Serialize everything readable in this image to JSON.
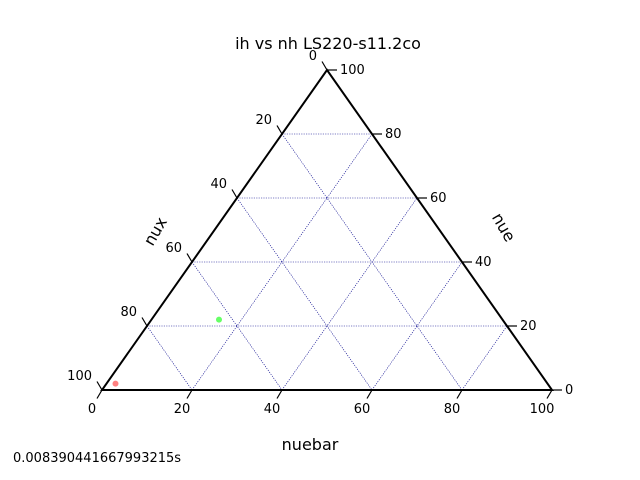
{
  "chart_data": {
    "type": "ternary-scatter",
    "title": "ih vs nh LS220-s11.2co",
    "axes": {
      "bottom": {
        "label": "nuebar",
        "ticks": [
          "0",
          "20",
          "40",
          "60",
          "80",
          "100"
        ]
      },
      "left": {
        "label": "nux",
        "ticks": [
          "0",
          "20",
          "40",
          "60",
          "80",
          "100"
        ]
      },
      "right": {
        "label": "nue",
        "ticks": [
          "0",
          "20",
          "40",
          "60",
          "80",
          "100"
        ]
      }
    },
    "range": [
      0,
      100
    ],
    "grid": true,
    "grid_color": "#00008b",
    "points": [
      {
        "nuebar": 2,
        "nue": 2,
        "nux": 96,
        "color": "#ff8080"
      },
      {
        "nuebar": 15,
        "nue": 22,
        "nux": 63,
        "color": "#66ff66"
      }
    ]
  },
  "footer": {
    "elapsed": "0.008390441667993215s"
  }
}
